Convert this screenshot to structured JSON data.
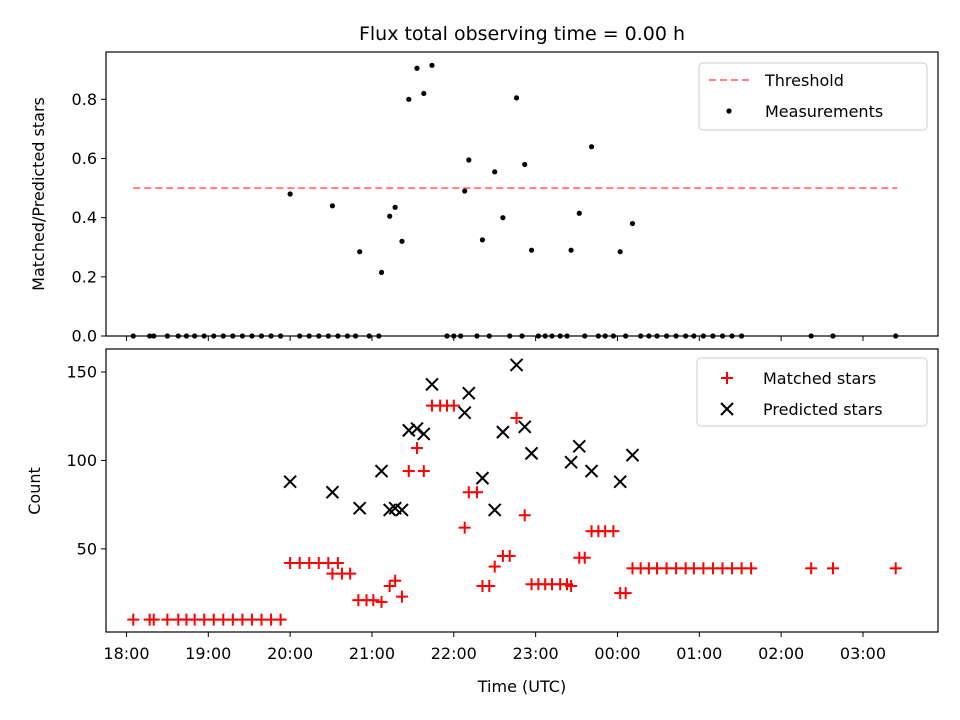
{
  "colors": {
    "threshold": "#ff7f7f",
    "measurement": "#000000",
    "matched": "#ff0000",
    "predicted": "#000000"
  },
  "chart_data": [
    {
      "type": "scatter",
      "title": "Flux total observing time = 0.00 h",
      "xlabel": "",
      "ylabel": "Matched/Predicted stars",
      "xlim": [
        "17:45",
        "03:55"
      ],
      "ylim": [
        0.0,
        0.96
      ],
      "yticks": [
        0.0,
        0.2,
        0.4,
        0.6,
        0.8
      ],
      "ytick_labels": [
        "0.0",
        "0.2",
        "0.4",
        "0.6",
        "0.8"
      ],
      "grid": false,
      "legend_position": "upper right",
      "series": [
        {
          "name": "Threshold",
          "kind": "dashed-line",
          "points": [
            {
              "x": "18:05",
              "y": 0.5
            },
            {
              "x": "03:25",
              "y": 0.5
            }
          ]
        },
        {
          "name": "Measurements",
          "kind": "dot",
          "points": [
            {
              "x": "18:05",
              "y": 0.0
            },
            {
              "x": "18:17",
              "y": 0.0
            },
            {
              "x": "18:20",
              "y": 0.0
            },
            {
              "x": "18:30",
              "y": 0.0
            },
            {
              "x": "18:38",
              "y": 0.0
            },
            {
              "x": "18:44",
              "y": 0.0
            },
            {
              "x": "18:50",
              "y": 0.0
            },
            {
              "x": "18:57",
              "y": 0.0
            },
            {
              "x": "19:04",
              "y": 0.0
            },
            {
              "x": "19:11",
              "y": 0.0
            },
            {
              "x": "19:18",
              "y": 0.0
            },
            {
              "x": "19:25",
              "y": 0.0
            },
            {
              "x": "19:32",
              "y": 0.0
            },
            {
              "x": "19:39",
              "y": 0.0
            },
            {
              "x": "19:46",
              "y": 0.0
            },
            {
              "x": "19:53",
              "y": 0.0
            },
            {
              "x": "20:00",
              "y": 0.48
            },
            {
              "x": "20:07",
              "y": 0.0
            },
            {
              "x": "20:14",
              "y": 0.0
            },
            {
              "x": "20:21",
              "y": 0.0
            },
            {
              "x": "20:28",
              "y": 0.0
            },
            {
              "x": "20:35",
              "y": 0.0
            },
            {
              "x": "20:31",
              "y": 0.44
            },
            {
              "x": "20:42",
              "y": 0.0
            },
            {
              "x": "20:48",
              "y": 0.0
            },
            {
              "x": "20:51",
              "y": 0.285
            },
            {
              "x": "20:58",
              "y": 0.0
            },
            {
              "x": "21:05",
              "y": 0.0
            },
            {
              "x": "21:07",
              "y": 0.215
            },
            {
              "x": "21:13",
              "y": 0.405
            },
            {
              "x": "21:17",
              "y": 0.435
            },
            {
              "x": "21:22",
              "y": 0.32
            },
            {
              "x": "21:27",
              "y": 0.8
            },
            {
              "x": "21:33",
              "y": 0.905
            },
            {
              "x": "21:38",
              "y": 0.82
            },
            {
              "x": "21:44",
              "y": 0.915
            },
            {
              "x": "21:55",
              "y": 0.0
            },
            {
              "x": "22:00",
              "y": 0.0
            },
            {
              "x": "22:05",
              "y": 0.0
            },
            {
              "x": "22:08",
              "y": 0.49
            },
            {
              "x": "22:11",
              "y": 0.595
            },
            {
              "x": "22:17",
              "y": 0.0
            },
            {
              "x": "22:21",
              "y": 0.325
            },
            {
              "x": "22:26",
              "y": 0.0
            },
            {
              "x": "22:30",
              "y": 0.555
            },
            {
              "x": "22:36",
              "y": 0.4
            },
            {
              "x": "22:41",
              "y": 0.0
            },
            {
              "x": "22:46",
              "y": 0.805
            },
            {
              "x": "22:50",
              "y": 0.0
            },
            {
              "x": "22:52",
              "y": 0.58
            },
            {
              "x": "22:57",
              "y": 0.29
            },
            {
              "x": "23:02",
              "y": 0.0
            },
            {
              "x": "23:07",
              "y": 0.0
            },
            {
              "x": "23:12",
              "y": 0.0
            },
            {
              "x": "23:18",
              "y": 0.0
            },
            {
              "x": "23:23",
              "y": 0.0
            },
            {
              "x": "23:26",
              "y": 0.29
            },
            {
              "x": "23:32",
              "y": 0.415
            },
            {
              "x": "23:36",
              "y": 0.0
            },
            {
              "x": "23:41",
              "y": 0.64
            },
            {
              "x": "23:46",
              "y": 0.0
            },
            {
              "x": "23:51",
              "y": 0.0
            },
            {
              "x": "23:57",
              "y": 0.0
            },
            {
              "x": "00:02",
              "y": 0.285
            },
            {
              "x": "00:06",
              "y": 0.0
            },
            {
              "x": "00:11",
              "y": 0.38
            },
            {
              "x": "00:17",
              "y": 0.0
            },
            {
              "x": "00:23",
              "y": 0.0
            },
            {
              "x": "00:29",
              "y": 0.0
            },
            {
              "x": "00:36",
              "y": 0.0
            },
            {
              "x": "00:43",
              "y": 0.0
            },
            {
              "x": "00:50",
              "y": 0.0
            },
            {
              "x": "00:56",
              "y": 0.0
            },
            {
              "x": "01:03",
              "y": 0.0
            },
            {
              "x": "01:10",
              "y": 0.0
            },
            {
              "x": "01:17",
              "y": 0.0
            },
            {
              "x": "01:24",
              "y": 0.0
            },
            {
              "x": "01:31",
              "y": 0.0
            },
            {
              "x": "02:22",
              "y": 0.0
            },
            {
              "x": "02:38",
              "y": 0.0
            },
            {
              "x": "03:24",
              "y": 0.0
            }
          ]
        }
      ]
    },
    {
      "type": "scatter",
      "title": "",
      "xlabel": "Time (UTC)",
      "ylabel": "Count",
      "xlim": [
        "17:45",
        "03:55"
      ],
      "ylim": [
        3,
        163
      ],
      "yticks": [
        50,
        100,
        150
      ],
      "ytick_labels": [
        "50",
        "100",
        "150"
      ],
      "xticks": [
        "18:00",
        "19:00",
        "20:00",
        "21:00",
        "22:00",
        "23:00",
        "00:00",
        "01:00",
        "02:00",
        "03:00"
      ],
      "xtick_labels": [
        "18:00",
        "19:00",
        "20:00",
        "21:00",
        "22:00",
        "23:00",
        "00:00",
        "01:00",
        "02:00",
        "03:00"
      ],
      "grid": false,
      "legend_position": "upper right",
      "series": [
        {
          "name": "Matched stars",
          "kind": "plus",
          "points": [
            {
              "x": "18:05",
              "y": 10
            },
            {
              "x": "18:17",
              "y": 10
            },
            {
              "x": "18:20",
              "y": 10
            },
            {
              "x": "18:30",
              "y": 10
            },
            {
              "x": "18:38",
              "y": 10
            },
            {
              "x": "18:44",
              "y": 10
            },
            {
              "x": "18:50",
              "y": 10
            },
            {
              "x": "18:57",
              "y": 10
            },
            {
              "x": "19:04",
              "y": 10
            },
            {
              "x": "19:11",
              "y": 10
            },
            {
              "x": "19:18",
              "y": 10
            },
            {
              "x": "19:25",
              "y": 10
            },
            {
              "x": "19:32",
              "y": 10
            },
            {
              "x": "19:39",
              "y": 10
            },
            {
              "x": "19:46",
              "y": 10
            },
            {
              "x": "19:53",
              "y": 10
            },
            {
              "x": "20:00",
              "y": 42
            },
            {
              "x": "20:07",
              "y": 42
            },
            {
              "x": "20:14",
              "y": 42
            },
            {
              "x": "20:21",
              "y": 42
            },
            {
              "x": "20:28",
              "y": 42
            },
            {
              "x": "20:35",
              "y": 42
            },
            {
              "x": "20:31",
              "y": 36
            },
            {
              "x": "20:38",
              "y": 36
            },
            {
              "x": "20:44",
              "y": 36
            },
            {
              "x": "20:50",
              "y": 21
            },
            {
              "x": "20:56",
              "y": 21
            },
            {
              "x": "21:01",
              "y": 21
            },
            {
              "x": "21:07",
              "y": 20
            },
            {
              "x": "21:13",
              "y": 29
            },
            {
              "x": "21:17",
              "y": 32
            },
            {
              "x": "21:22",
              "y": 23
            },
            {
              "x": "21:27",
              "y": 94
            },
            {
              "x": "21:33",
              "y": 107
            },
            {
              "x": "21:38",
              "y": 94
            },
            {
              "x": "21:44",
              "y": 131
            },
            {
              "x": "21:50",
              "y": 131
            },
            {
              "x": "21:55",
              "y": 131
            },
            {
              "x": "22:00",
              "y": 131
            },
            {
              "x": "22:08",
              "y": 62
            },
            {
              "x": "22:11",
              "y": 82
            },
            {
              "x": "22:17",
              "y": 82
            },
            {
              "x": "22:21",
              "y": 29
            },
            {
              "x": "22:26",
              "y": 29
            },
            {
              "x": "22:30",
              "y": 40
            },
            {
              "x": "22:36",
              "y": 46
            },
            {
              "x": "22:41",
              "y": 46
            },
            {
              "x": "22:46",
              "y": 124
            },
            {
              "x": "22:52",
              "y": 69
            },
            {
              "x": "22:57",
              "y": 30
            },
            {
              "x": "23:02",
              "y": 30
            },
            {
              "x": "23:07",
              "y": 30
            },
            {
              "x": "23:12",
              "y": 30
            },
            {
              "x": "23:18",
              "y": 30
            },
            {
              "x": "23:23",
              "y": 30
            },
            {
              "x": "23:26",
              "y": 29
            },
            {
              "x": "23:32",
              "y": 45
            },
            {
              "x": "23:36",
              "y": 45
            },
            {
              "x": "23:41",
              "y": 60
            },
            {
              "x": "23:46",
              "y": 60
            },
            {
              "x": "23:51",
              "y": 60
            },
            {
              "x": "23:57",
              "y": 60
            },
            {
              "x": "00:02",
              "y": 25
            },
            {
              "x": "00:06",
              "y": 25
            },
            {
              "x": "00:11",
              "y": 39
            },
            {
              "x": "00:17",
              "y": 39
            },
            {
              "x": "00:23",
              "y": 39
            },
            {
              "x": "00:29",
              "y": 39
            },
            {
              "x": "00:36",
              "y": 39
            },
            {
              "x": "00:43",
              "y": 39
            },
            {
              "x": "00:50",
              "y": 39
            },
            {
              "x": "00:56",
              "y": 39
            },
            {
              "x": "01:03",
              "y": 39
            },
            {
              "x": "01:10",
              "y": 39
            },
            {
              "x": "01:17",
              "y": 39
            },
            {
              "x": "01:24",
              "y": 39
            },
            {
              "x": "01:31",
              "y": 39
            },
            {
              "x": "01:38",
              "y": 39
            },
            {
              "x": "02:22",
              "y": 39
            },
            {
              "x": "02:38",
              "y": 39
            },
            {
              "x": "03:24",
              "y": 39
            }
          ]
        },
        {
          "name": "Predicted stars",
          "kind": "cross",
          "points": [
            {
              "x": "20:00",
              "y": 88
            },
            {
              "x": "20:31",
              "y": 82
            },
            {
              "x": "20:51",
              "y": 73
            },
            {
              "x": "21:07",
              "y": 94
            },
            {
              "x": "21:13",
              "y": 72
            },
            {
              "x": "21:17",
              "y": 73
            },
            {
              "x": "21:22",
              "y": 72
            },
            {
              "x": "21:27",
              "y": 117
            },
            {
              "x": "21:33",
              "y": 118
            },
            {
              "x": "21:38",
              "y": 115
            },
            {
              "x": "21:44",
              "y": 143
            },
            {
              "x": "22:08",
              "y": 127
            },
            {
              "x": "22:11",
              "y": 138
            },
            {
              "x": "22:21",
              "y": 90
            },
            {
              "x": "22:30",
              "y": 72
            },
            {
              "x": "22:36",
              "y": 116
            },
            {
              "x": "22:46",
              "y": 154
            },
            {
              "x": "22:52",
              "y": 119
            },
            {
              "x": "22:57",
              "y": 104
            },
            {
              "x": "23:26",
              "y": 99
            },
            {
              "x": "23:32",
              "y": 108
            },
            {
              "x": "23:41",
              "y": 94
            },
            {
              "x": "00:02",
              "y": 88
            },
            {
              "x": "00:11",
              "y": 103
            }
          ]
        }
      ]
    }
  ]
}
